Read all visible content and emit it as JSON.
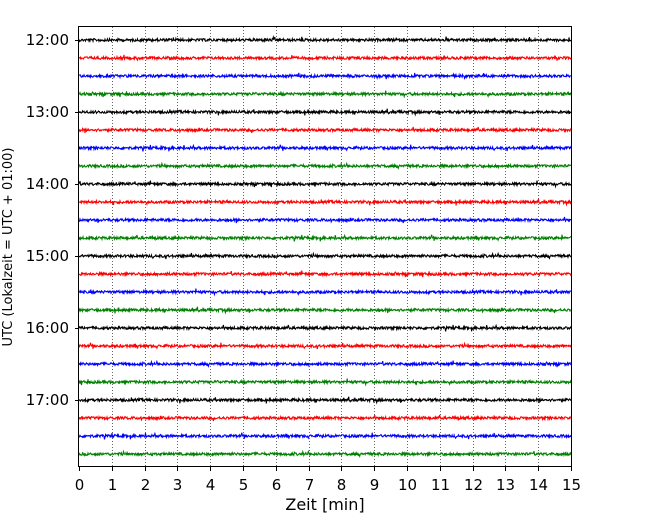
{
  "chart_data": {
    "type": "line",
    "title": "",
    "xlabel": "Zeit  [min]",
    "ylabel": "UTC (Lokalzeit = UTC + 01:00)",
    "xlim": [
      0,
      15
    ],
    "x_ticks": [
      "0",
      "1",
      "2",
      "3",
      "4",
      "5",
      "6",
      "7",
      "8",
      "9",
      "10",
      "11",
      "12",
      "13",
      "14",
      "15"
    ],
    "y_tick_labels": [
      "12:00",
      "13:00",
      "14:00",
      "15:00",
      "16:00",
      "17:00"
    ],
    "trace_interval_min": 15,
    "trace_start": "12:00",
    "trace_count": 24,
    "trace_colors": [
      "#000000",
      "#ff0000",
      "#0000ff",
      "#008000"
    ],
    "grid": "vertical dotted lines at each minute",
    "legend": "none"
  }
}
